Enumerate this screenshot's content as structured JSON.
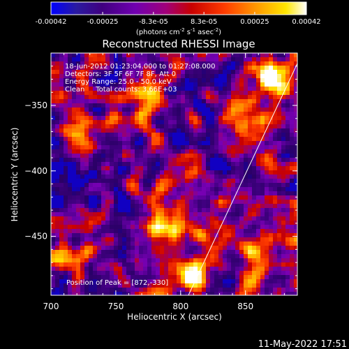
{
  "colorbar": {
    "ticks": [
      "-0.00042",
      "-0.00025",
      "-8.3e-05",
      "8.3e-05",
      "0.00025",
      "0.00042"
    ],
    "unit_parts": [
      "(photons cm",
      "-2",
      " s",
      "-1",
      " asec",
      "-2",
      ")"
    ]
  },
  "footer": {
    "timestamp": "11-May-2022 17:51"
  },
  "chart_data": {
    "type": "heatmap",
    "title": "Reconstructed RHESSI Image",
    "xlabel": "Heliocentric X (arcsec)",
    "ylabel": "Heliocentric Y (arcsec)",
    "xlim": [
      700,
      890
    ],
    "ylim": [
      -495,
      -310
    ],
    "x_ticks": [
      700,
      750,
      800,
      850
    ],
    "y_ticks": [
      -350,
      -400,
      -450
    ],
    "x_tick_labels": [
      "700",
      "750",
      "800",
      "850"
    ],
    "y_tick_labels": [
      "-350",
      "-400",
      "-450"
    ],
    "colorscale": {
      "min": -0.00042,
      "max": 0.00042,
      "stops": [
        "#0000ff",
        "#2a0066",
        "#400080",
        "#7800b4",
        "#c80000",
        "#ff3c00",
        "#ff9600",
        "#ffe600",
        "#ffffff"
      ]
    },
    "annotations": [
      "18-Jun-2012 01:23:04.000 to 01:27:08.000",
      "Detectors: 3F 5F 6F 7F 8F, Att 0",
      "Energy Range: 25.0 - 50.0 keV",
      "Clean     Total counts: 3.66E+03"
    ],
    "peak_label": "Position of Peak = [872,-330]",
    "peak": [
      872,
      -330
    ],
    "limb_line": [
      [
        806,
        -495
      ],
      [
        890,
        -318
      ]
    ],
    "bright_regions": [
      {
        "x": 872,
        "y": -330,
        "level": 1.0
      },
      {
        "x": 857,
        "y": -360,
        "level": 0.9
      },
      {
        "x": 812,
        "y": -478,
        "level": 0.95
      },
      {
        "x": 858,
        "y": -470,
        "level": 0.75
      },
      {
        "x": 705,
        "y": -468,
        "level": 0.8
      },
      {
        "x": 725,
        "y": -365,
        "level": 0.7
      },
      {
        "x": 770,
        "y": -345,
        "level": 0.65
      },
      {
        "x": 790,
        "y": -440,
        "level": 0.7
      }
    ]
  }
}
